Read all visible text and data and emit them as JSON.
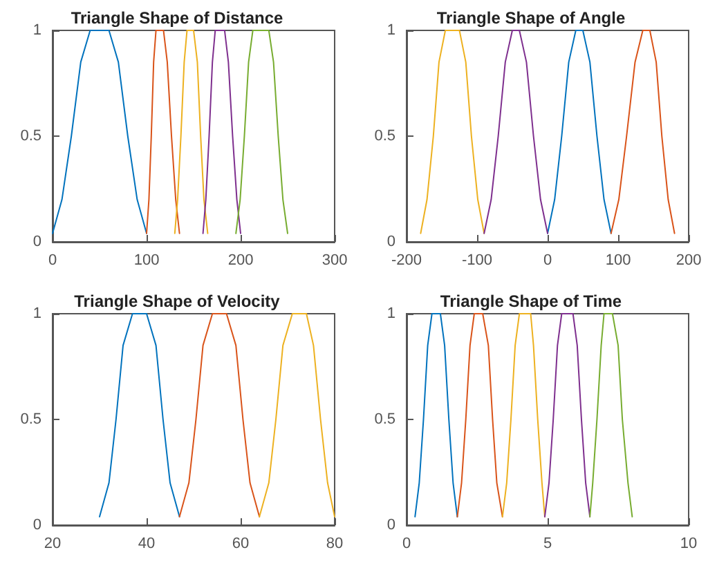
{
  "chart_data": [
    {
      "type": "line",
      "title": "Triangle Shape of Distance",
      "xlim": [
        0,
        300
      ],
      "xticks": [
        0,
        100,
        200,
        300
      ],
      "ylim": [
        0,
        1
      ],
      "yticks": [
        0,
        0.5,
        1
      ],
      "grid": false,
      "marker": "none",
      "line_style": "solid",
      "series": [
        {
          "color": "#0072bd",
          "x": [
            0,
            10,
            20,
            30,
            40,
            60,
            70,
            80,
            90,
            100
          ],
          "values": [
            0.04,
            0.2,
            0.5,
            0.85,
            1,
            1,
            0.85,
            0.5,
            0.2,
            0.04
          ]
        },
        {
          "color": "#d95319",
          "x": [
            100,
            102.5,
            105,
            107.5,
            110,
            118,
            122,
            126.5,
            131,
            135
          ],
          "values": [
            0.04,
            0.2,
            0.5,
            0.85,
            1,
            1,
            0.85,
            0.5,
            0.2,
            0.04
          ]
        },
        {
          "color": "#edb120",
          "x": [
            130,
            133,
            136.5,
            140,
            143,
            150,
            154,
            157.5,
            161,
            165
          ],
          "values": [
            0.04,
            0.2,
            0.5,
            0.85,
            1,
            1,
            0.85,
            0.5,
            0.2,
            0.04
          ]
        },
        {
          "color": "#7e2f8e",
          "x": [
            160,
            163,
            166.5,
            170,
            173,
            183,
            187,
            191.5,
            196,
            200
          ],
          "values": [
            0.04,
            0.2,
            0.5,
            0.85,
            1,
            1,
            0.85,
            0.5,
            0.2,
            0.04
          ]
        },
        {
          "color": "#77ac30",
          "x": [
            195,
            199.5,
            204,
            208.5,
            213,
            230,
            235,
            240,
            245,
            250
          ],
          "values": [
            0.04,
            0.2,
            0.5,
            0.85,
            1,
            1,
            0.85,
            0.5,
            0.2,
            0.04
          ]
        }
      ]
    },
    {
      "type": "line",
      "title": "Triangle Shape of Angle",
      "xlim": [
        -200,
        200
      ],
      "xticks": [
        -200,
        -100,
        0,
        100,
        200
      ],
      "ylim": [
        0,
        1
      ],
      "yticks": [
        0,
        0.5,
        1
      ],
      "grid": false,
      "marker": "none",
      "line_style": "solid",
      "series": [
        {
          "color": "#0072bd",
          "x": [
            0,
            10,
            20,
            30,
            40,
            50,
            60,
            70,
            80,
            90
          ],
          "values": [
            0.04,
            0.2,
            0.5,
            0.85,
            1,
            1,
            0.85,
            0.5,
            0.2,
            0.04
          ]
        },
        {
          "color": "#d95319",
          "x": [
            90,
            101,
            112,
            124,
            135,
            145,
            154,
            162,
            171,
            180
          ],
          "values": [
            0.04,
            0.2,
            0.5,
            0.85,
            1,
            1,
            0.85,
            0.5,
            0.2,
            0.04
          ]
        },
        {
          "color": "#edb120",
          "x": [
            -180,
            -171,
            -162,
            -154,
            -145,
            -125,
            -116,
            -108,
            -99,
            -90
          ],
          "values": [
            0.04,
            0.2,
            0.5,
            0.85,
            1,
            1,
            0.85,
            0.5,
            0.2,
            0.04
          ]
        },
        {
          "color": "#7e2f8e",
          "x": [
            -90,
            -80,
            -70,
            -60,
            -50,
            -40,
            -30,
            -20,
            -10,
            0
          ],
          "values": [
            0.04,
            0.2,
            0.5,
            0.85,
            1,
            1,
            0.85,
            0.5,
            0.2,
            0.04
          ]
        }
      ]
    },
    {
      "type": "line",
      "title": "Triangle Shape of Velocity",
      "xlim": [
        20,
        80
      ],
      "xticks": [
        20,
        40,
        60,
        80
      ],
      "ylim": [
        0,
        1
      ],
      "yticks": [
        0,
        0.5,
        1
      ],
      "grid": false,
      "marker": "none",
      "line_style": "solid",
      "series": [
        {
          "color": "#0072bd",
          "x": [
            30,
            32,
            33.5,
            35,
            37,
            40,
            42,
            43.5,
            45,
            47
          ],
          "values": [
            0.04,
            0.2,
            0.5,
            0.85,
            1,
            1,
            0.85,
            0.5,
            0.2,
            0.04
          ]
        },
        {
          "color": "#d95319",
          "x": [
            47,
            49,
            50.5,
            52,
            54,
            57,
            59,
            60.5,
            62,
            64
          ],
          "values": [
            0.04,
            0.2,
            0.5,
            0.85,
            1,
            1,
            0.85,
            0.5,
            0.2,
            0.04
          ]
        },
        {
          "color": "#edb120",
          "x": [
            64,
            66,
            67.5,
            69,
            71,
            74,
            75.5,
            77,
            78.5,
            80
          ],
          "values": [
            0.04,
            0.2,
            0.5,
            0.85,
            1,
            1,
            0.85,
            0.5,
            0.2,
            0.04
          ]
        }
      ]
    },
    {
      "type": "line",
      "title": "Triangle Shape of Time",
      "xlim": [
        0,
        10
      ],
      "xticks": [
        0,
        5,
        10
      ],
      "ylim": [
        0,
        1
      ],
      "yticks": [
        0,
        0.5,
        1
      ],
      "grid": false,
      "marker": "none",
      "line_style": "solid",
      "series": [
        {
          "color": "#0072bd",
          "x": [
            0.3,
            0.45,
            0.6,
            0.75,
            0.9,
            1.2,
            1.35,
            1.5,
            1.65,
            1.8
          ],
          "values": [
            0.04,
            0.2,
            0.5,
            0.85,
            1,
            1,
            0.85,
            0.5,
            0.2,
            0.04
          ]
        },
        {
          "color": "#d95319",
          "x": [
            1.8,
            1.95,
            2.1,
            2.25,
            2.4,
            2.7,
            2.9,
            3.05,
            3.2,
            3.4
          ],
          "values": [
            0.04,
            0.2,
            0.5,
            0.85,
            1,
            1,
            0.85,
            0.5,
            0.2,
            0.04
          ]
        },
        {
          "color": "#edb120",
          "x": [
            3.4,
            3.55,
            3.7,
            3.85,
            4,
            4.4,
            4.5,
            4.65,
            4.8,
            4.9
          ],
          "values": [
            0.04,
            0.2,
            0.5,
            0.85,
            1,
            1,
            0.85,
            0.5,
            0.2,
            0.04
          ]
        },
        {
          "color": "#7e2f8e",
          "x": [
            4.9,
            5.05,
            5.2,
            5.35,
            5.5,
            5.9,
            6.05,
            6.2,
            6.35,
            6.5
          ],
          "values": [
            0.04,
            0.2,
            0.5,
            0.85,
            1,
            1,
            0.85,
            0.5,
            0.2,
            0.04
          ]
        },
        {
          "color": "#77ac30",
          "x": [
            6.5,
            6.6,
            6.75,
            6.9,
            7,
            7.3,
            7.5,
            7.65,
            7.85,
            8
          ],
          "values": [
            0.04,
            0.2,
            0.5,
            0.85,
            1,
            1,
            0.85,
            0.5,
            0.2,
            0.04
          ]
        }
      ]
    }
  ]
}
